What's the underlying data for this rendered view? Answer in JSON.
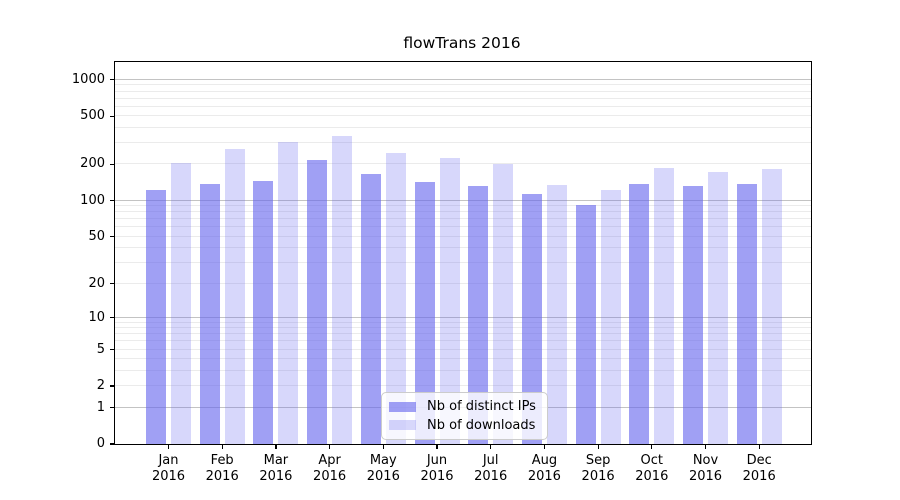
{
  "figure": {
    "background": "#ffffff"
  },
  "chart_data": {
    "type": "bar",
    "title": "flowTrans 2016",
    "categories": [
      "Jan",
      "Feb",
      "Mar",
      "Apr",
      "May",
      "Jun",
      "Jul",
      "Aug",
      "Sep",
      "Oct",
      "Nov",
      "Dec"
    ],
    "category_year": "2016",
    "series": [
      {
        "name": "Nb of distinct IPs",
        "color": "rgba(102,102,238,0.62)",
        "values": [
          123,
          137,
          147,
          217,
          168,
          143,
          133,
          114,
          92,
          138,
          133,
          137
        ]
      },
      {
        "name": "Nb of downloads",
        "color": "rgba(102,102,238,0.26)",
        "values": [
          207,
          270,
          306,
          346,
          251,
          224,
          200,
          135,
          123,
          188,
          174,
          184
        ]
      }
    ],
    "xlabel": "",
    "ylabel": "",
    "y_scale": "log10(value+1)",
    "y_ticks": [
      0,
      1,
      2,
      5,
      10,
      20,
      50,
      100,
      200,
      500,
      1000
    ],
    "ylim": [
      0,
      1400
    ],
    "grid": {
      "major_gridline_values": [
        1,
        10,
        100,
        1000
      ],
      "minor_gridlines": "multiples 2-9 of each decade 1,10,100",
      "major_color": "#c3c3c3",
      "minor_color": "#ebebeb"
    },
    "legend": {
      "position": "lower center",
      "background": "rgba(255,255,255,0.8)",
      "border_color": "#cccccc"
    }
  }
}
